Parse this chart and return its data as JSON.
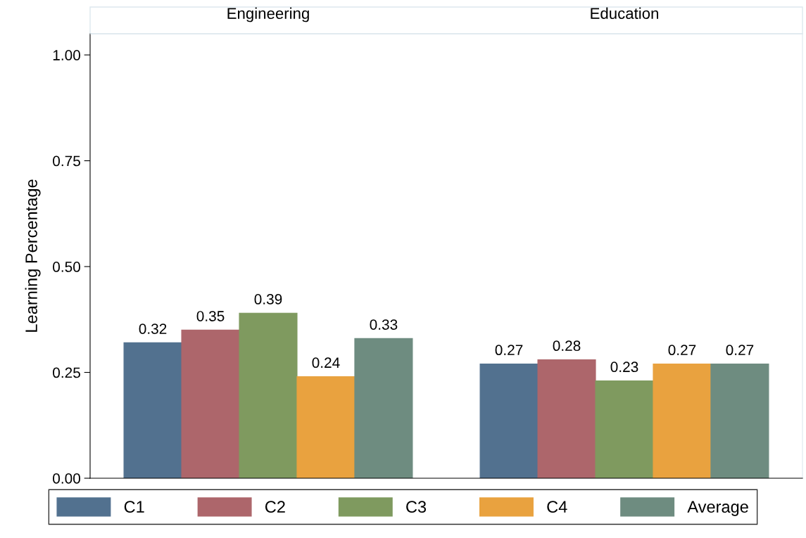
{
  "chart_data": {
    "type": "bar",
    "ylabel": "Learning Percentage",
    "categories": [
      "Engineering",
      "Education"
    ],
    "ylim": [
      0,
      1.05
    ],
    "yticks": [
      {
        "value": 0,
        "label": "0.00"
      },
      {
        "value": 0.25,
        "label": "0.25"
      },
      {
        "value": 0.5,
        "label": "0.50"
      },
      {
        "value": 0.75,
        "label": "0.75"
      },
      {
        "value": 1,
        "label": "1.00"
      }
    ],
    "data_labels": true,
    "legend": "bottom",
    "grid": false,
    "series": [
      {
        "name": "C1",
        "color": "#52718f",
        "values": [
          0.32,
          0.27
        ]
      },
      {
        "name": "C2",
        "color": "#ad666b",
        "values": [
          0.35,
          0.28
        ]
      },
      {
        "name": "C3",
        "color": "#7f9a5f",
        "values": [
          0.39,
          0.23
        ]
      },
      {
        "name": "C4",
        "color": "#e9a23f",
        "values": [
          0.24,
          0.27
        ]
      },
      {
        "name": "Average",
        "color": "#6e8c80",
        "values": [
          0.33,
          0.27
        ]
      }
    ]
  }
}
